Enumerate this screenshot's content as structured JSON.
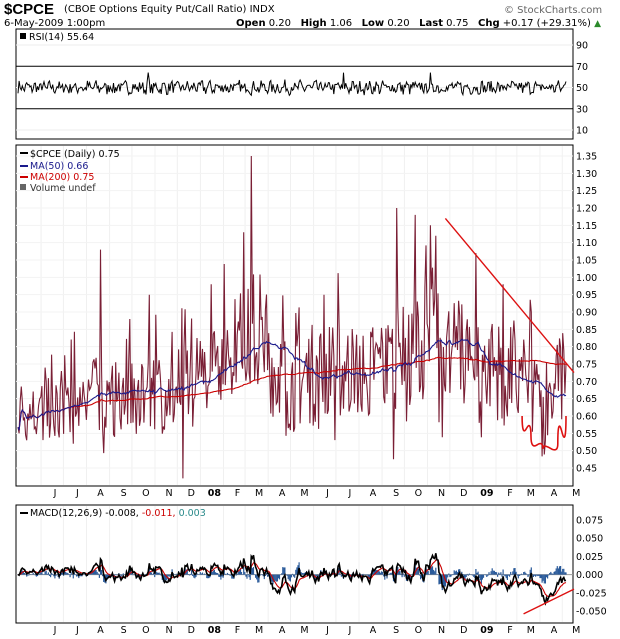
{
  "header": {
    "symbol": "$CPCE",
    "description": "(CBOE Options Equity Put/Call Ratio)",
    "exchange": "INDX",
    "date": "6-May-2009 1:00pm",
    "open_label": "Open",
    "open": "0.20",
    "high_label": "High",
    "high": "1.06",
    "low_label": "Low",
    "low": "0.20",
    "last_label": "Last",
    "last": "0.75",
    "chg_label": "Chg",
    "chg": "+0.17 (+29.31%)",
    "brand": "© StockCharts.com",
    "chg_icon": "up-triangle-icon"
  },
  "colors": {
    "price": "#7a1f35",
    "ma50": "#1a1a8c",
    "ma200": "#cc0000",
    "macd": "#000000",
    "signal": "#cc0000",
    "histogram": "#2a5a9a",
    "annotation": "#dd1111"
  },
  "rsi_panel": {
    "legend": "RSI(14) 55.64",
    "levels": [
      "90",
      "70",
      "50",
      "30",
      "10"
    ],
    "ref_lines": [
      70,
      30
    ]
  },
  "price_panel": {
    "legend": [
      "$CPCE (Daily) 0.75",
      "MA(50) 0.66",
      "MA(200) 0.75",
      "Volume undef"
    ],
    "y_ticks": [
      "1.35",
      "1.30",
      "1.25",
      "1.20",
      "1.15",
      "1.10",
      "1.05",
      "1.00",
      "0.95",
      "0.90",
      "0.85",
      "0.80",
      "0.75",
      "0.70",
      "0.65",
      "0.60",
      "0.55",
      "0.50",
      "0.45"
    ],
    "x_ticks": [
      "J",
      "J",
      "A",
      "S",
      "O",
      "N",
      "D",
      "08",
      "F",
      "M",
      "A",
      "M",
      "J",
      "J",
      "A",
      "S",
      "O",
      "N",
      "D",
      "09",
      "F",
      "M",
      "A",
      "M"
    ]
  },
  "macd_panel": {
    "legend_prefix": "MACD(12,26,9)",
    "macd": "-0.008,",
    "signal": "-0.011,",
    "hist": "0.003",
    "y_ticks": [
      "0.075",
      "0.050",
      "0.025",
      "0.000",
      "-0.025",
      "-0.050"
    ],
    "x_ticks": [
      "J",
      "J",
      "A",
      "S",
      "O",
      "N",
      "D",
      "08",
      "F",
      "M",
      "A",
      "M",
      "J",
      "J",
      "A",
      "S",
      "O",
      "N",
      "D",
      "09",
      "F",
      "M",
      "A",
      "M"
    ]
  },
  "chart_data": {
    "type": "line",
    "x_range": [
      "2007-05",
      "2009-05-06"
    ],
    "rsi": {
      "ylim": [
        0,
        100
      ],
      "last": 55.64
    },
    "price": {
      "ylim": [
        0.43,
        1.37
      ],
      "anchors": [
        [
          "2007-05",
          0.62
        ],
        [
          "2007-06",
          0.6
        ],
        [
          "2007-07",
          0.64
        ],
        [
          "2007-08",
          0.68
        ],
        [
          "2007-09",
          0.64
        ],
        [
          "2007-10",
          0.66
        ],
        [
          "2007-11",
          0.68
        ],
        [
          "2007-12",
          0.66
        ],
        [
          "2008-01",
          0.72
        ],
        [
          "2008-02",
          0.78
        ],
        [
          "2008-03",
          0.84
        ],
        [
          "2008-04",
          0.76
        ],
        [
          "2008-05",
          0.7
        ],
        [
          "2008-06",
          0.72
        ],
        [
          "2008-07",
          0.74
        ],
        [
          "2008-08",
          0.72
        ],
        [
          "2008-09",
          0.74
        ],
        [
          "2008-10",
          0.78
        ],
        [
          "2008-11",
          0.84
        ],
        [
          "2008-12",
          0.8
        ],
        [
          "2009-01",
          0.76
        ],
        [
          "2009-02",
          0.74
        ],
        [
          "2009-03",
          0.7
        ],
        [
          "2009-04",
          0.62
        ],
        [
          "2009-05",
          0.7
        ]
      ],
      "spikes": [
        [
          "2007-07-15",
          0.52
        ],
        [
          "2007-08-20",
          1.08
        ],
        [
          "2007-10-25",
          0.95
        ],
        [
          "2007-12-08",
          0.42
        ],
        [
          "2008-01-15",
          0.98
        ],
        [
          "2008-02-28",
          1.13
        ],
        [
          "2008-03-10",
          1.35
        ],
        [
          "2008-06-15",
          0.95
        ],
        [
          "2008-09-20",
          1.2
        ],
        [
          "2008-10-15",
          1.18
        ],
        [
          "2008-11-05",
          1.15
        ],
        [
          "2008-11-12",
          1.12
        ],
        [
          "2009-01-05",
          1.07
        ],
        [
          "2009-01-10",
          0.58
        ],
        [
          "2009-02-10",
          0.98
        ],
        [
          "2009-03-20",
          0.9
        ]
      ],
      "last": 0.75,
      "ma50_last": 0.66,
      "ma200_last": 0.75
    },
    "macd": {
      "ylim": [
        -0.065,
        0.088
      ],
      "macd_last": -0.008,
      "signal_last": -0.011,
      "hist_last": 0.003
    },
    "annotations": [
      {
        "type": "trendline",
        "from": [
          "2008-11-25",
          1.17
        ],
        "to": [
          "2009-05-06",
          0.76
        ]
      },
      {
        "type": "curve",
        "points": [
          [
            "2009-03-08",
            0.6
          ],
          [
            "2009-03-20",
            0.54
          ],
          [
            "2009-04-05",
            0.505
          ],
          [
            "2009-04-25",
            0.52
          ],
          [
            "2009-05-06",
            0.6
          ]
        ]
      },
      {
        "type": "macd-trendline",
        "from": [
          "2009-03-10",
          -0.054
        ],
        "to": [
          "2009-05-06",
          -0.02
        ]
      }
    ]
  }
}
